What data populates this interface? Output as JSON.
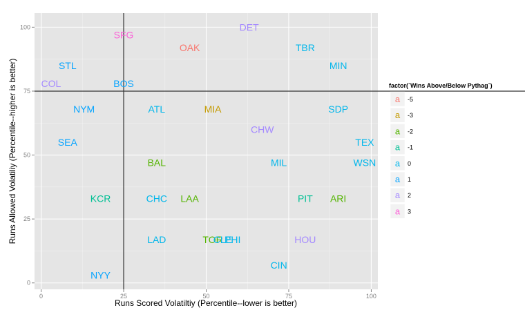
{
  "chart_data": {
    "type": "scatter",
    "title": "",
    "xlabel": "Runs Scored Volatiltiy (Percentile--lower is better)",
    "ylabel": "Runs Allowed Volatiliy (Percentile--higher is better)",
    "xlim": [
      -2,
      102
    ],
    "ylim": [
      -2.5,
      105.5
    ],
    "xticks": [
      0,
      25,
      50,
      75,
      100
    ],
    "yticks": [
      0,
      25,
      50,
      75,
      100
    ],
    "grid": true,
    "reference_lines": {
      "x": 25,
      "y": 75
    },
    "legend": {
      "title": "factor(`Wins Above/Below Pythag`)",
      "position": "right",
      "key_glyph": "a",
      "entries": [
        {
          "label": "-5",
          "color": "#F8766D"
        },
        {
          "label": "-3",
          "color": "#C49A00"
        },
        {
          "label": "-2",
          "color": "#53B400"
        },
        {
          "label": "-1",
          "color": "#00C094"
        },
        {
          "label": "0",
          "color": "#00B6EB"
        },
        {
          "label": "1",
          "color": "#06A4FF"
        },
        {
          "label": "2",
          "color": "#A58AFF"
        },
        {
          "label": "3",
          "color": "#FB61D7"
        }
      ]
    },
    "points": [
      {
        "label": "DET",
        "x": 63,
        "y": 100,
        "group": "2"
      },
      {
        "label": "SFG",
        "x": 25,
        "y": 97,
        "group": "3"
      },
      {
        "label": "OAK",
        "x": 45,
        "y": 92,
        "group": "-5"
      },
      {
        "label": "TBR",
        "x": 80,
        "y": 92,
        "group": "0"
      },
      {
        "label": "STL",
        "x": 8,
        "y": 85,
        "group": "1"
      },
      {
        "label": "MIN",
        "x": 90,
        "y": 85,
        "group": "0"
      },
      {
        "label": "COL",
        "x": 3,
        "y": 78,
        "group": "2"
      },
      {
        "label": "BOS",
        "x": 25,
        "y": 78,
        "group": "1"
      },
      {
        "label": "NYM",
        "x": 13,
        "y": 68,
        "group": "1"
      },
      {
        "label": "ATL",
        "x": 35,
        "y": 68,
        "group": "0"
      },
      {
        "label": "MIA",
        "x": 52,
        "y": 68,
        "group": "-3"
      },
      {
        "label": "SDP",
        "x": 90,
        "y": 68,
        "group": "0"
      },
      {
        "label": "CHW",
        "x": 67,
        "y": 60,
        "group": "2"
      },
      {
        "label": "SEA",
        "x": 8,
        "y": 55,
        "group": "1"
      },
      {
        "label": "TEX",
        "x": 98,
        "y": 55,
        "group": "0"
      },
      {
        "label": "BAL",
        "x": 35,
        "y": 47,
        "group": "-2"
      },
      {
        "label": "MIL",
        "x": 72,
        "y": 47,
        "group": "0"
      },
      {
        "label": "WSN",
        "x": 98,
        "y": 47,
        "group": "0"
      },
      {
        "label": "KCR",
        "x": 18,
        "y": 33,
        "group": "-1"
      },
      {
        "label": "CHC",
        "x": 35,
        "y": 33,
        "group": "0"
      },
      {
        "label": "LAA",
        "x": 45,
        "y": 33,
        "group": "-2"
      },
      {
        "label": "PIT",
        "x": 80,
        "y": 33,
        "group": "-1"
      },
      {
        "label": "ARI",
        "x": 90,
        "y": 33,
        "group": "-2"
      },
      {
        "label": "LAD",
        "x": 35,
        "y": 17,
        "group": "0"
      },
      {
        "label": "TOR",
        "x": 52,
        "y": 17,
        "group": "-2"
      },
      {
        "label": "CLE",
        "x": 55,
        "y": 17,
        "group": "0"
      },
      {
        "label": "PHI",
        "x": 58,
        "y": 17,
        "group": "0"
      },
      {
        "label": "HOU",
        "x": 80,
        "y": 17,
        "group": "2"
      },
      {
        "label": "CIN",
        "x": 72,
        "y": 7,
        "group": "0"
      },
      {
        "label": "NYY",
        "x": 18,
        "y": 3,
        "group": "1"
      }
    ]
  }
}
